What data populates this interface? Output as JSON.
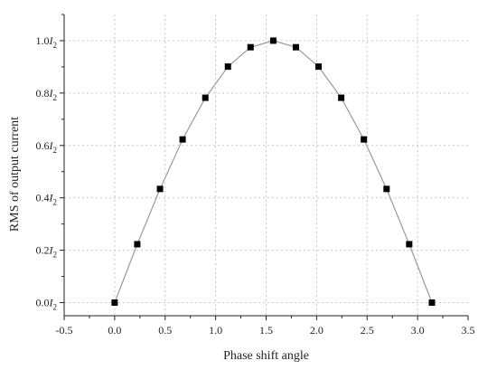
{
  "chart_data": {
    "type": "line",
    "xlabel": "Phase shift angle",
    "ylabel": "RMS of output current",
    "xlim": [
      -0.5,
      3.5
    ],
    "ylim": [
      -0.05,
      1.1
    ],
    "x_ticks": [
      -0.5,
      0.0,
      0.5,
      1.0,
      1.5,
      2.0,
      2.5,
      3.0,
      3.5
    ],
    "x_tick_labels": [
      "-0.5",
      "0.0",
      "0.5",
      "1.0",
      "1.5",
      "2.0",
      "2.5",
      "3.0",
      "3.5"
    ],
    "y_ticks": [
      0.0,
      0.2,
      0.4,
      0.6,
      0.8,
      1.0
    ],
    "y_tick_labels": [
      {
        "prefix": "0.0",
        "symbol": "I",
        "sub": "2"
      },
      {
        "prefix": "0.2",
        "symbol": "I",
        "sub": "2"
      },
      {
        "prefix": "0.4",
        "symbol": "I",
        "sub": "2"
      },
      {
        "prefix": "0.6",
        "symbol": "I",
        "sub": "2"
      },
      {
        "prefix": "0.8",
        "symbol": "I",
        "sub": "2"
      },
      {
        "prefix": "1.0",
        "symbol": "I",
        "sub": "2"
      }
    ],
    "grid": true,
    "marker": "square",
    "colors": {
      "line": "#9a9a9a",
      "marker": "#000000",
      "grid": "#c8c8c8",
      "axis": "#222222"
    },
    "series": [
      {
        "x": [
          0.0,
          0.224,
          0.449,
          0.673,
          0.898,
          1.122,
          1.346,
          1.571,
          1.795,
          2.019,
          2.244,
          2.468,
          2.693,
          2.917,
          3.142
        ],
        "y": [
          0.0,
          0.223,
          0.434,
          0.623,
          0.782,
          0.901,
          0.975,
          1.0,
          0.975,
          0.901,
          0.782,
          0.623,
          0.434,
          0.223,
          0.0
        ]
      }
    ]
  }
}
